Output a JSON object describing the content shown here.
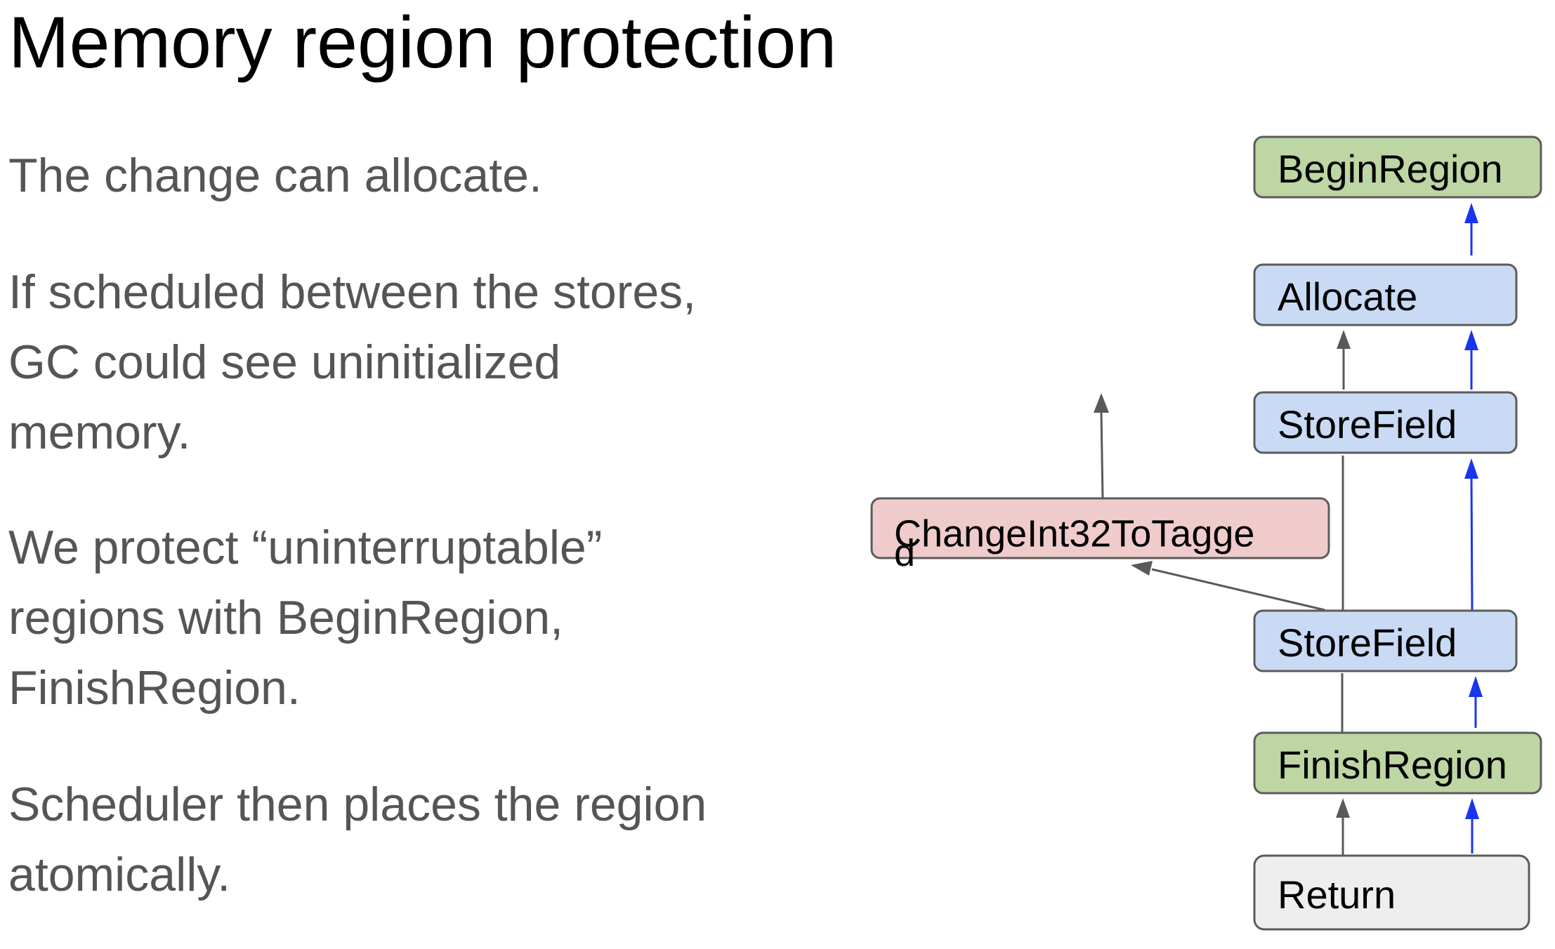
{
  "slide": {
    "title": "Memory region protection",
    "paragraphs": [
      {
        "lines": [
          "The change can allocate."
        ]
      },
      {
        "lines": [
          "If scheduled between the stores,",
          "GC could see uninitialized",
          "memory."
        ]
      },
      {
        "lines": [
          "We protect “uninterruptable”",
          "regions with BeginRegion,",
          "FinishRegion."
        ]
      },
      {
        "lines": [
          "Scheduler then places the region",
          "atomically."
        ]
      }
    ]
  },
  "diagram": {
    "nodes": {
      "begin_region": {
        "label": "BeginRegion",
        "color": "#bdd6a4"
      },
      "allocate": {
        "label": "Allocate",
        "color": "#c9daf5"
      },
      "store_field_1": {
        "label": "StoreField",
        "color": "#c9daf5"
      },
      "change_int32": {
        "label_line1": "ChangeInt32ToTagge",
        "label_line2": "d",
        "color": "#efcccb"
      },
      "store_field_2": {
        "label": "StoreField",
        "color": "#c9daf5"
      },
      "finish_region": {
        "label": "FinishRegion",
        "color": "#bdd6a4"
      },
      "return": {
        "label": "Return",
        "color": "#eeeeee"
      }
    },
    "edge_colors": {
      "effect": "#1a35f0",
      "value": "#595959"
    }
  }
}
